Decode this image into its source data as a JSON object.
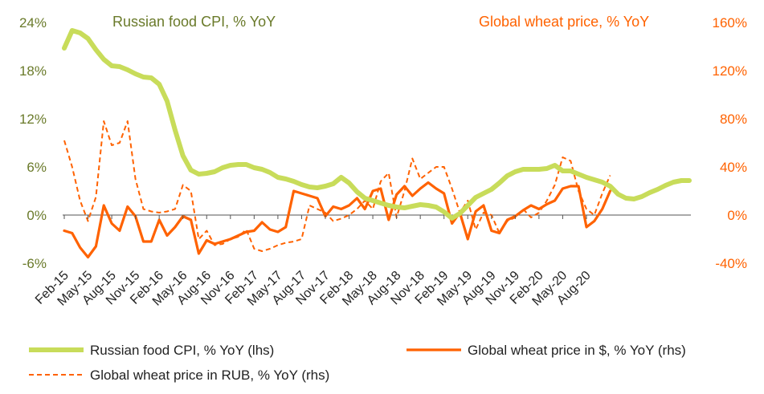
{
  "chart_data": {
    "type": "line",
    "left_axis_title": "Russian food CPI, % YoY",
    "right_axis_title": "Global wheat price, % YoY",
    "left_ticks": [
      "24%",
      "18%",
      "12%",
      "6%",
      "0%",
      "-6%"
    ],
    "right_ticks": [
      "160%",
      "120%",
      "80%",
      "40%",
      "0%",
      "-40%"
    ],
    "left_range": [
      -6,
      24
    ],
    "right_range": [
      -40,
      160
    ],
    "x_tick_labels": [
      "Feb-15",
      "May-15",
      "Aug-15",
      "Nov-15",
      "Feb-16",
      "May-16",
      "Aug-16",
      "Nov-16",
      "Feb-17",
      "May-17",
      "Aug-17",
      "Nov-17",
      "Feb-18",
      "May-18",
      "Aug-18",
      "Nov-18",
      "Feb-19",
      "May-19",
      "Aug-19",
      "Nov-19",
      "Feb-20",
      "May-20",
      "Aug-20"
    ],
    "x_range": [
      "2015-02",
      "2020-08"
    ],
    "colors": {
      "cpi": "#c8dc5a",
      "wheat_usd": "#ff6200",
      "wheat_rub": "#ff6200",
      "left_axis": "#6a7a2a",
      "right_axis": "#ff6200"
    },
    "series": [
      {
        "name": "Russian food CPI, % YoY (lhs)",
        "axis": "left",
        "style": "solid-thick",
        "values": [
          20.8,
          23.0,
          22.7,
          22.0,
          20.6,
          19.4,
          18.6,
          18.5,
          18.1,
          17.6,
          17.2,
          17.1,
          16.3,
          14.2,
          10.6,
          7.4,
          5.6,
          5.1,
          5.2,
          5.4,
          5.9,
          6.2,
          6.3,
          6.3,
          5.9,
          5.7,
          5.3,
          4.7,
          4.5,
          4.2,
          3.8,
          3.5,
          3.4,
          3.6,
          3.9,
          4.7,
          4.0,
          2.9,
          2.1,
          1.8,
          1.5,
          1.2,
          1.0,
          0.9,
          1.1,
          1.3,
          1.2,
          1.0,
          0.4,
          -0.4,
          0.2,
          1.2,
          2.2,
          2.7,
          3.2,
          4.0,
          4.9,
          5.4,
          5.7,
          5.7,
          5.7,
          5.8,
          6.2,
          5.5,
          5.5,
          5.1,
          4.7,
          4.4,
          4.1,
          3.6,
          2.6,
          2.1,
          2.0,
          2.3,
          2.8,
          3.2,
          3.7,
          4.1,
          4.3,
          4.3
        ]
      },
      {
        "name": "Global wheat price in $, % YoY (rhs)",
        "axis": "right",
        "style": "solid",
        "values": [
          -13,
          -15,
          -27,
          -35,
          -26,
          8,
          -7,
          -13,
          7,
          -1,
          -22,
          -22,
          -4,
          -17,
          -10,
          -1,
          -4,
          -32,
          -21,
          -24,
          -22,
          -20,
          -17,
          -14,
          -13,
          -6,
          -12,
          -14,
          -10,
          20,
          18,
          16,
          14,
          -1,
          7,
          5,
          8,
          14,
          5,
          20,
          22,
          -4,
          17,
          24,
          16,
          22,
          27,
          22,
          18,
          -7,
          2,
          -20,
          3,
          8,
          -13,
          -15,
          -4,
          -1,
          4,
          8,
          5,
          9,
          12,
          22,
          24,
          24,
          -10,
          -5,
          5,
          20
        ]
      },
      {
        "name": "Global wheat price in RUB, % YoY (rhs)",
        "axis": "right",
        "style": "dashed",
        "values": [
          62,
          40,
          12,
          -5,
          15,
          78,
          58,
          60,
          78,
          30,
          5,
          3,
          2,
          3,
          5,
          25,
          20,
          -20,
          -13,
          -25,
          -24,
          -20,
          -18,
          -12,
          -28,
          -30,
          -28,
          -25,
          -23,
          -22,
          -20,
          8,
          5,
          2,
          -5,
          -3,
          0,
          5,
          12,
          5,
          28,
          35,
          -2,
          20,
          47,
          30,
          35,
          40,
          40,
          22,
          2,
          12,
          -12,
          2,
          0,
          -15,
          -5,
          -2,
          5,
          -2,
          2,
          12,
          25,
          48,
          45,
          20,
          5,
          0,
          18,
          33
        ]
      }
    ],
    "legend": {
      "position": "bottom",
      "items": [
        "Russian food CPI, % YoY (lhs)",
        "Global wheat price in $, % YoY (rhs)",
        "Global wheat price in RUB, % YoY (rhs)"
      ]
    },
    "grid": false
  }
}
